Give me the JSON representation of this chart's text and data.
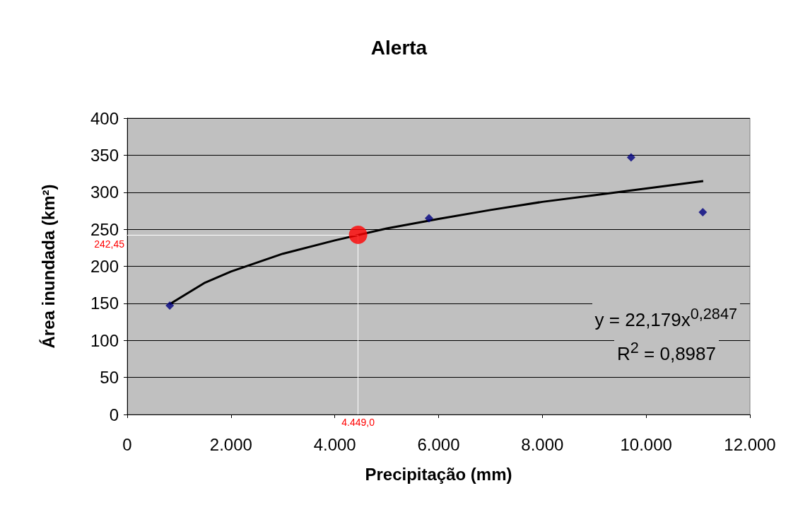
{
  "chart_data": {
    "type": "scatter",
    "title": "Alerta",
    "xlabel": "Precipitação (mm)",
    "ylabel": "Área inundada (km²)",
    "xlim": [
      0,
      12000
    ],
    "xticks": [
      0,
      {
        "value": 2000,
        "label": "2.000"
      },
      {
        "value": 4000,
        "label": "4.000"
      },
      {
        "value": 6000,
        "label": "6.000"
      },
      {
        "value": 8000,
        "label": "8.000"
      },
      {
        "value": 10000,
        "label": "10.000"
      },
      {
        "value": 12000,
        "label": "12.000"
      }
    ],
    "ylim": [
      0,
      400
    ],
    "yticks": [
      0,
      50,
      100,
      150,
      200,
      250,
      300,
      350,
      400
    ],
    "grid": "y",
    "marker": "diamond",
    "series": [
      {
        "color": "#000080",
        "x": [
          820,
          5815,
          9710,
          11092
        ],
        "values": [
          147,
          265,
          347,
          273
        ]
      },
      {
        "type": "line",
        "color": "#000000",
        "marker": "none",
        "x": [
          820,
          1500,
          2000,
          3000,
          4000,
          5000,
          6000,
          7000,
          8000,
          9000,
          10000,
          11100
        ],
        "values": [
          149,
          178,
          193,
          217,
          235,
          251,
          264,
          276,
          287,
          296,
          305,
          315
        ]
      },
      {
        "type": "scatter",
        "color": "#ff0000",
        "marker": "circle",
        "x": [
          4449
        ],
        "values": [
          242.45
        ]
      }
    ],
    "annotations": [
      {
        "text": "242,45",
        "x": 4449,
        "y": 242.45
      },
      {
        "text": "4.449,0",
        "x": 4449,
        "y": 242.45
      },
      "y = 22,179x$^{0,2847}$",
      "R$^{2}$ = 0,8987"
    ]
  }
}
